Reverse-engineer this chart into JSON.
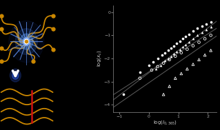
{
  "bg_color": "#000000",
  "plot_bg": "#000000",
  "xlabel": "log(I_{0,365})",
  "ylabel": "log(x_c)",
  "xlim": [
    -1.2,
    2.3
  ],
  "ylim": [
    -4.3,
    0.3
  ],
  "xticks": [
    -1,
    0,
    1,
    2
  ],
  "yticks": [
    -4,
    -3,
    -2,
    -1,
    0
  ],
  "yellow": "#cc8800",
  "red": "#cc1111",
  "series1_x": [
    -0.85,
    -0.3,
    0.0,
    0.15,
    0.3,
    0.45,
    0.55,
    0.65,
    0.75,
    0.85,
    0.95,
    1.05,
    1.15,
    1.25,
    1.35,
    1.5,
    1.65,
    1.8,
    1.95,
    2.1
  ],
  "series1_y": [
    -3.55,
    -2.6,
    -2.3,
    -2.15,
    -2.0,
    -1.85,
    -1.75,
    -1.65,
    -1.55,
    -1.45,
    -1.35,
    -1.25,
    -1.15,
    -1.05,
    -0.95,
    -0.82,
    -0.7,
    -0.6,
    -0.5,
    -0.42
  ],
  "series2_x": [
    0.25,
    0.4,
    0.55,
    0.65,
    0.75,
    0.85,
    0.95,
    1.05,
    1.15,
    1.25,
    1.35,
    1.5,
    1.65,
    1.8,
    1.95,
    2.1
  ],
  "series2_y": [
    -2.45,
    -2.3,
    -2.1,
    -2.0,
    -1.9,
    -1.8,
    -1.7,
    -1.6,
    -1.5,
    -1.4,
    -1.3,
    -1.15,
    -1.0,
    -0.88,
    -0.75,
    -0.62
  ],
  "series3_x": [
    -0.3,
    0.1,
    0.3,
    0.5,
    0.7,
    0.9,
    1.1,
    1.3,
    1.5,
    1.7,
    1.9,
    2.1
  ],
  "series3_y": [
    -2.85,
    -2.5,
    -2.35,
    -2.2,
    -2.05,
    -1.9,
    -1.75,
    -1.6,
    -1.45,
    -1.3,
    -1.15,
    -1.0
  ],
  "series4_x": [
    0.5,
    0.7,
    0.9,
    1.1,
    1.3,
    1.5,
    1.7,
    1.9,
    2.1
  ],
  "series4_y": [
    -3.55,
    -3.2,
    -2.85,
    -2.65,
    -2.45,
    -2.25,
    -2.05,
    -1.85,
    -1.65
  ],
  "line1_slope": 0.97,
  "line1_intercept": -2.62,
  "line3_slope": 0.82,
  "line3_intercept": -2.58,
  "line4_slope": 0.88,
  "line4_intercept": -3.05
}
